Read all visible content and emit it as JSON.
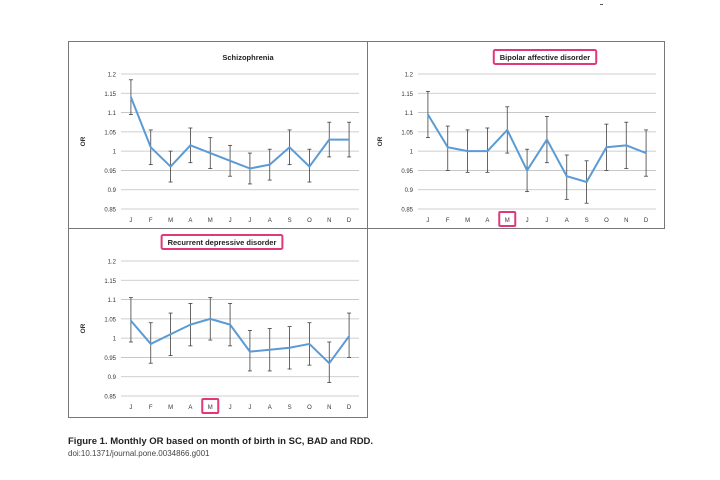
{
  "figure": {
    "caption": "Figure 1. Monthly OR based on month of birth in SC, BAD and RDD.",
    "doi": "doi:10.1371/journal.pone.0034866.g001"
  },
  "colors": {
    "line": "#5b9bd5",
    "highlight": "#e0397a",
    "grid": "#bfbfbf",
    "error_bar": "#404040"
  },
  "chart_data": [
    {
      "type": "line",
      "title": "Schizophrenia",
      "title_highlighted": false,
      "ylabel": "OR",
      "xlabel": "",
      "ylim": [
        0.85,
        1.2
      ],
      "yticks": [
        "1.2",
        "1.15",
        "1.1",
        "1.05",
        "1",
        "0.95",
        "0.9",
        "0.85"
      ],
      "categories": [
        "J",
        "F",
        "M",
        "A",
        "M",
        "J",
        "J",
        "A",
        "S",
        "O",
        "N",
        "D"
      ],
      "highlighted_category_index": null,
      "grid": true,
      "values": [
        1.14,
        1.01,
        0.96,
        1.015,
        0.995,
        0.975,
        0.955,
        0.965,
        1.01,
        0.96,
        1.03,
        1.03
      ],
      "error_low": [
        1.095,
        0.965,
        0.92,
        0.97,
        0.955,
        0.935,
        0.915,
        0.925,
        0.965,
        0.92,
        0.985,
        0.985
      ],
      "error_high": [
        1.185,
        1.055,
        1.0,
        1.06,
        1.035,
        1.015,
        0.995,
        1.005,
        1.055,
        1.005,
        1.075,
        1.075
      ]
    },
    {
      "type": "line",
      "title": "Bipolar affective disorder",
      "title_highlighted": true,
      "ylabel": "OR",
      "xlabel": "",
      "ylim": [
        0.85,
        1.2
      ],
      "yticks": [
        "1.2",
        "1.15",
        "1.1",
        "1.05",
        "1",
        "0.95",
        "0.9",
        "0.85"
      ],
      "categories": [
        "J",
        "F",
        "M",
        "A",
        "M",
        "J",
        "J",
        "A",
        "S",
        "O",
        "N",
        "D"
      ],
      "highlighted_category_index": 4,
      "grid": true,
      "values": [
        1.095,
        1.01,
        1.0,
        1.0,
        1.055,
        0.95,
        1.03,
        0.935,
        0.92,
        1.01,
        1.015,
        0.995
      ],
      "error_low": [
        1.035,
        0.95,
        0.945,
        0.945,
        0.995,
        0.895,
        0.97,
        0.875,
        0.865,
        0.95,
        0.955,
        0.935
      ],
      "error_high": [
        1.155,
        1.065,
        1.055,
        1.06,
        1.115,
        1.005,
        1.09,
        0.99,
        0.975,
        1.07,
        1.075,
        1.055
      ]
    },
    {
      "type": "line",
      "title": "Recurrent depressive disorder",
      "title_highlighted": true,
      "ylabel": "OR",
      "xlabel": "",
      "ylim": [
        0.85,
        1.2
      ],
      "yticks": [
        "1.2",
        "1.15",
        "1.1",
        "1.05",
        "1",
        "0.95",
        "0.9",
        "0.85"
      ],
      "categories": [
        "J",
        "F",
        "M",
        "A",
        "M",
        "J",
        "J",
        "A",
        "S",
        "O",
        "N",
        "D"
      ],
      "highlighted_category_index": 4,
      "grid": true,
      "values": [
        1.045,
        0.985,
        1.01,
        1.035,
        1.05,
        1.035,
        0.965,
        0.97,
        0.975,
        0.985,
        0.935,
        1.005
      ],
      "error_low": [
        0.99,
        0.935,
        0.955,
        0.98,
        0.995,
        0.98,
        0.915,
        0.915,
        0.92,
        0.93,
        0.885,
        0.95
      ],
      "error_high": [
        1.105,
        1.04,
        1.065,
        1.09,
        1.105,
        1.09,
        1.02,
        1.025,
        1.03,
        1.04,
        0.99,
        1.065
      ]
    }
  ]
}
